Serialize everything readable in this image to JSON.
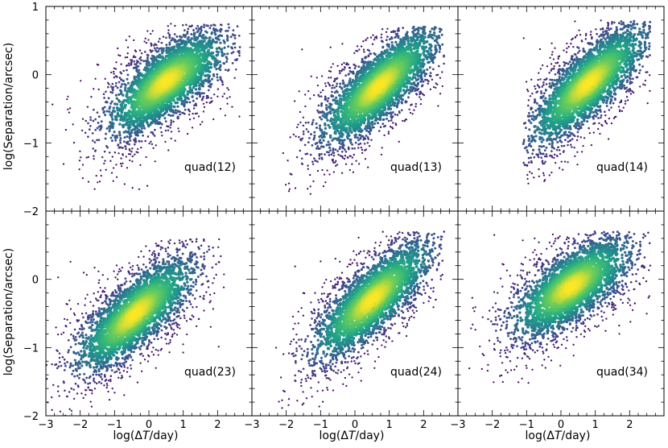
{
  "figure": {
    "panel_labels": [
      "quad(12)",
      "quad(13)",
      "quad(14)",
      "quad(23)",
      "quad(24)",
      "quad(34)"
    ],
    "y_label": "log(Separation/arcsec)",
    "x_label_prefix": "log(Δ",
    "x_label_var": "T",
    "x_label_suffix": "/day)",
    "x_tick_labels": [
      "−3",
      "−2",
      "−1",
      "0",
      "1",
      "2"
    ],
    "y_tick_labels_top": [
      "1",
      "0",
      "−1",
      "−2"
    ],
    "y_tick_labels_bottom": [
      "0",
      "−1",
      "−2"
    ]
  },
  "chart_data": [
    {
      "type": "scatter",
      "density_colored": true,
      "colormap": "viridis",
      "title": "quad(12)",
      "xlabel": "",
      "ylabel": "log(Separation/arcsec)",
      "xlim": [
        -3,
        3
      ],
      "ylim": [
        -2,
        1
      ],
      "ridge": {
        "x": [
          -2.5,
          -1.5,
          -0.5,
          0.5,
          1.5,
          2.5
        ],
        "y": [
          -0.95,
          -0.75,
          -0.45,
          -0.1,
          0.2,
          0.45
        ]
      },
      "peak": {
        "x": 0.5,
        "y": -0.1
      },
      "x_extent": [
        -3,
        2.7
      ],
      "y_extent": [
        -1.75,
        0.75
      ]
    },
    {
      "type": "scatter",
      "density_colored": true,
      "colormap": "viridis",
      "title": "quad(13)",
      "xlabel": "",
      "ylabel": "",
      "xlim": [
        -3,
        3
      ],
      "ylim": [
        -2,
        1
      ],
      "ridge": {
        "x": [
          -2.0,
          -1.0,
          0.0,
          1.0,
          2.0
        ],
        "y": [
          -1.2,
          -0.8,
          -0.45,
          -0.05,
          0.35
        ]
      },
      "peak": {
        "x": 0.7,
        "y": -0.2
      },
      "x_extent": [
        -2.1,
        2.6
      ],
      "y_extent": [
        -1.8,
        0.7
      ]
    },
    {
      "type": "scatter",
      "density_colored": true,
      "colormap": "viridis",
      "title": "quad(14)",
      "xlabel": "",
      "ylabel": "",
      "xlim": [
        -3,
        3
      ],
      "ylim": [
        -2,
        1
      ],
      "ridge": {
        "x": [
          -1.0,
          0.0,
          1.0,
          2.0
        ],
        "y": [
          -0.9,
          -0.45,
          -0.05,
          0.35
        ]
      },
      "peak": {
        "x": 0.8,
        "y": -0.2
      },
      "x_extent": [
        -1.1,
        2.6
      ],
      "y_extent": [
        -1.6,
        0.8
      ]
    },
    {
      "type": "scatter",
      "density_colored": true,
      "colormap": "viridis",
      "title": "quad(23)",
      "xlabel": "log(ΔT/day)",
      "ylabel": "log(Separation/arcsec)",
      "xlim": [
        -3,
        3
      ],
      "ylim": [
        -2,
        1
      ],
      "ridge": {
        "x": [
          -3.0,
          -2.0,
          -1.0,
          0.0,
          1.0,
          2.0
        ],
        "y": [
          -1.5,
          -1.1,
          -0.75,
          -0.35,
          0.0,
          0.35
        ]
      },
      "peak": {
        "x": -0.4,
        "y": -0.5
      },
      "x_extent": [
        -3,
        2.2
      ],
      "y_extent": [
        -2,
        0.6
      ]
    },
    {
      "type": "scatter",
      "density_colored": true,
      "colormap": "viridis",
      "title": "quad(24)",
      "xlabel": "log(ΔT/day)",
      "ylabel": "",
      "xlim": [
        -3,
        3
      ],
      "ylim": [
        -2,
        1
      ],
      "ridge": {
        "x": [
          -2.0,
          -1.0,
          0.0,
          1.0,
          2.0
        ],
        "y": [
          -1.3,
          -0.9,
          -0.5,
          -0.1,
          0.3
        ]
      },
      "peak": {
        "x": 0.5,
        "y": -0.3
      },
      "x_extent": [
        -2.3,
        2.6
      ],
      "y_extent": [
        -1.9,
        0.7
      ]
    },
    {
      "type": "scatter",
      "density_colored": true,
      "colormap": "viridis",
      "title": "quad(34)",
      "xlabel": "log(ΔT/day)",
      "ylabel": "",
      "xlim": [
        -3,
        3
      ],
      "ylim": [
        -2,
        1
      ],
      "ridge": {
        "x": [
          -3.0,
          -2.0,
          -1.0,
          0.0,
          1.0,
          2.0
        ],
        "y": [
          -0.9,
          -0.75,
          -0.5,
          -0.2,
          0.1,
          0.35
        ]
      },
      "peak": {
        "x": 0.3,
        "y": -0.2
      },
      "x_extent": [
        -3,
        2.6
      ],
      "y_extent": [
        -1.7,
        0.7
      ]
    }
  ],
  "colors": {
    "viridis_low": "#440154",
    "viridis_mid": "#21918c",
    "viridis_high": "#fde725",
    "axis": "#000000"
  }
}
